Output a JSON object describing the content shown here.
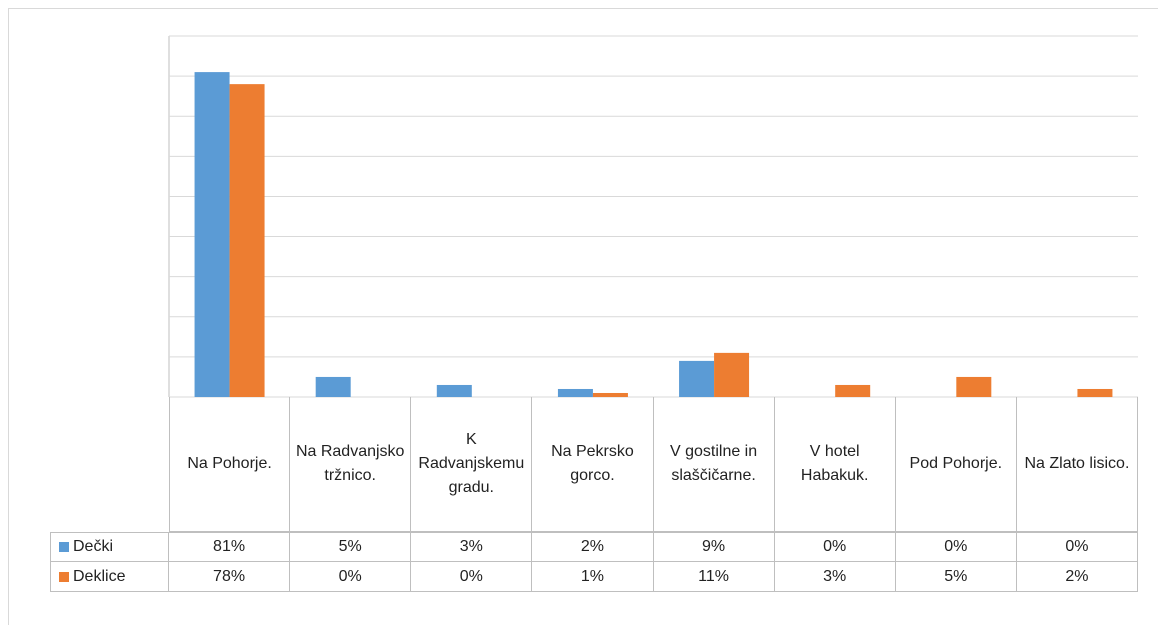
{
  "chart_data": {
    "type": "bar",
    "categories": [
      "Na Pohorje.",
      "Na Radvanjsko tržnico.",
      "K Radvanjskemu gradu.",
      "Na Pekrsko gorco.",
      "V gostilne in slaščičarne.",
      "V hotel Habakuk.",
      "Pod Pohorje.",
      "Na Zlato lisico."
    ],
    "series": [
      {
        "name": "Dečki",
        "color": "#5b9bd5",
        "values": [
          81,
          5,
          3,
          2,
          9,
          0,
          0,
          0
        ],
        "value_labels": [
          "81%",
          "5%",
          "3%",
          "2%",
          "9%",
          "0%",
          "0%",
          "0%"
        ]
      },
      {
        "name": "Deklice",
        "color": "#ed7d31",
        "values": [
          78,
          0,
          0,
          1,
          11,
          3,
          5,
          2
        ],
        "value_labels": [
          "78%",
          "0%",
          "0%",
          "1%",
          "11%",
          "3%",
          "5%",
          "2%"
        ]
      }
    ],
    "ylim": [
      0,
      90
    ],
    "yticks": [
      0,
      10,
      20,
      30,
      40,
      50,
      60,
      70,
      80,
      90
    ],
    "grid": true
  }
}
